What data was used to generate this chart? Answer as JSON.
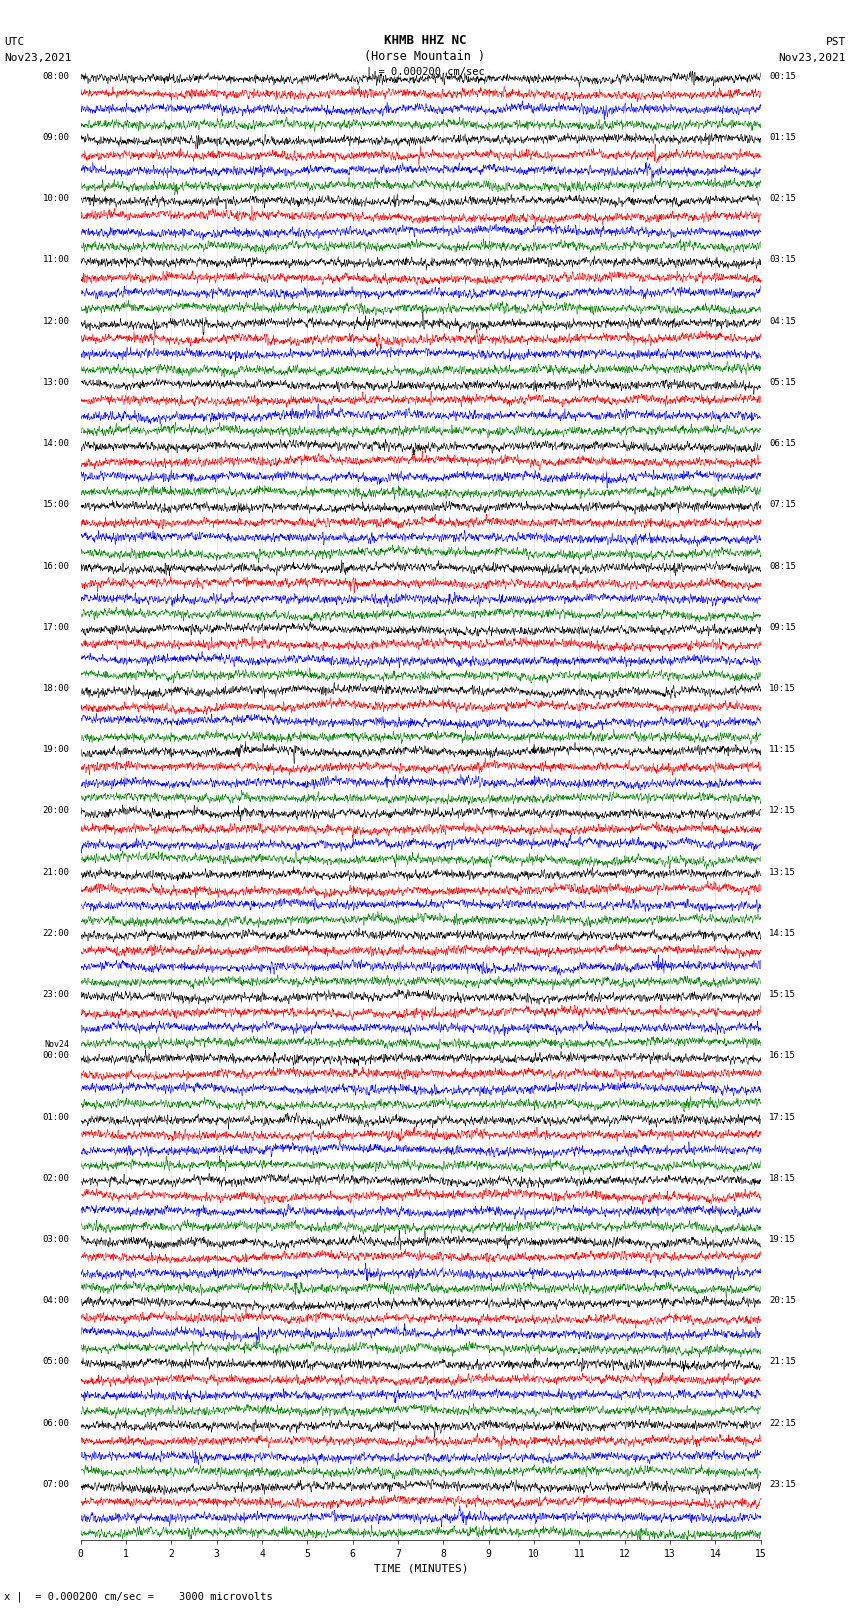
{
  "title_line1": "KHMB HHZ NC",
  "title_line2": "(Horse Mountain )",
  "scale_label": "| = 0.000200 cm/sec",
  "utc_label": "UTC",
  "utc_date": "Nov23,2021",
  "pst_label": "PST",
  "pst_date": "Nov23,2021",
  "xlabel": "TIME (MINUTES)",
  "footer": "x |  = 0.000200 cm/sec =    3000 microvolts",
  "time_minutes": 15,
  "traces_per_group": 4,
  "colors": [
    "black",
    "red",
    "blue",
    "green"
  ],
  "left_hour_labels": [
    "08:00",
    "09:00",
    "10:00",
    "11:00",
    "12:00",
    "13:00",
    "14:00",
    "15:00",
    "16:00",
    "17:00",
    "18:00",
    "19:00",
    "20:00",
    "21:00",
    "22:00",
    "23:00",
    "00:00",
    "01:00",
    "02:00",
    "03:00",
    "04:00",
    "05:00",
    "06:00",
    "07:00"
  ],
  "right_hour_labels": [
    "00:15",
    "01:15",
    "02:15",
    "03:15",
    "04:15",
    "05:15",
    "06:15",
    "07:15",
    "08:15",
    "09:15",
    "10:15",
    "11:15",
    "12:15",
    "13:15",
    "14:15",
    "15:15",
    "16:15",
    "17:15",
    "18:15",
    "19:15",
    "20:15",
    "21:15",
    "22:15",
    "23:15"
  ],
  "nov24_group_index": 16,
  "bg_color": "white",
  "noise_seed": 12345
}
